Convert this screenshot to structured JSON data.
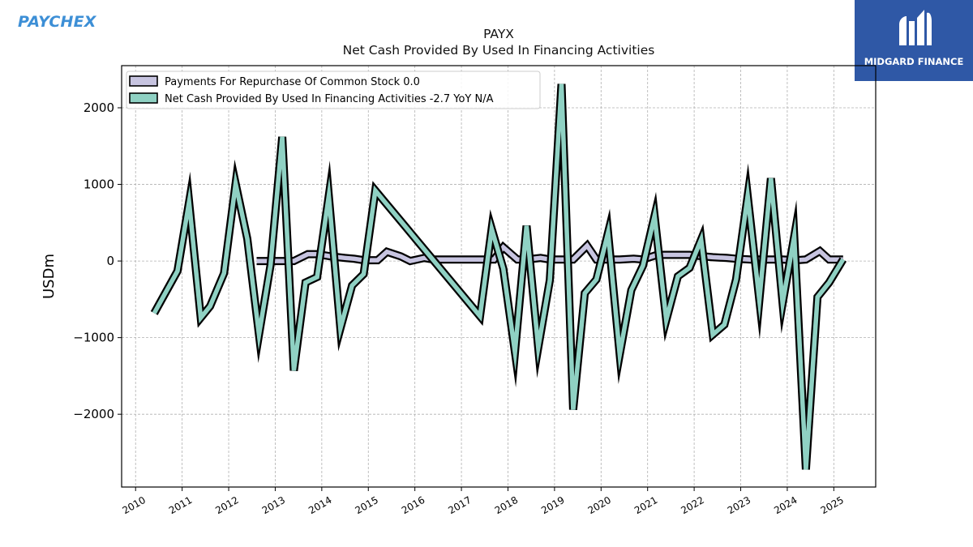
{
  "brand": {
    "left_logo": "PAYCHEX",
    "right_logo": "MIDGARD FINANCE"
  },
  "colors": {
    "repurchase": "#c7c4e0",
    "financing": "#8fd1c3",
    "outline": "#000000",
    "logo_blue": "#3d8fd6",
    "badge_bg": "#2f58a6"
  },
  "chart_data": {
    "type": "line",
    "title": "PAYX",
    "subtitle": "Net Cash Provided By Used In Financing Activities",
    "ylabel": "USDm",
    "xlabel": "",
    "xlim": [
      2009.7,
      2025.9
    ],
    "ylim": [
      -2950,
      2550
    ],
    "yticks": [
      -2000,
      -1000,
      0,
      1000,
      2000
    ],
    "ytick_labels": [
      "−2000",
      "−1000",
      "0",
      "1000",
      "2000"
    ],
    "xticks": [
      2010,
      2011,
      2012,
      2013,
      2014,
      2015,
      2016,
      2017,
      2018,
      2019,
      2020,
      2021,
      2022,
      2023,
      2024,
      2025
    ],
    "xtick_labels": [
      "2010",
      "2011",
      "2012",
      "2013",
      "2014",
      "2015",
      "2016",
      "2017",
      "2018",
      "2019",
      "2020",
      "2021",
      "2022",
      "2023",
      "2024",
      "2025"
    ],
    "grid": true,
    "legend_position": "top-left",
    "series": [
      {
        "name": "Payments For Repurchase Of Common Stock",
        "legend_label": "Payments For Repurchase Of Common Stock  0.0",
        "x": [
          2012.6,
          2012.9,
          2013.1,
          2013.4,
          2013.7,
          2013.9,
          2014.2,
          2014.5,
          2014.7,
          2014.9,
          2015.2,
          2015.4,
          2015.7,
          2015.9,
          2016.2,
          2016.4,
          2016.7,
          2017.2,
          2017.4,
          2017.7,
          2017.9,
          2018.2,
          2018.4,
          2018.7,
          2018.9,
          2019.2,
          2019.4,
          2019.7,
          2019.9,
          2020.2,
          2020.4,
          2020.7,
          2020.9,
          2021.2,
          2021.4,
          2021.7,
          2021.9,
          2022.2,
          2022.4,
          2022.7,
          2022.9,
          2023.2,
          2023.4,
          2023.7,
          2023.9,
          2024.2,
          2024.4,
          2024.7,
          2024.9,
          2025.2
        ],
        "values": [
          0,
          0,
          0,
          0,
          90,
          90,
          60,
          40,
          30,
          10,
          10,
          120,
          60,
          0,
          40,
          20,
          20,
          20,
          20,
          20,
          180,
          20,
          20,
          40,
          20,
          20,
          20,
          200,
          20,
          20,
          20,
          30,
          20,
          80,
          80,
          80,
          80,
          60,
          50,
          40,
          30,
          20,
          20,
          20,
          20,
          10,
          20,
          130,
          20,
          20
        ]
      },
      {
        "name": "Net Cash Provided By Used In Financing Activities",
        "legend_label": "Net Cash Provided By Used In Financing Activities  -2.7 YoY N/A",
        "x": [
          2010.4,
          2010.9,
          2011.15,
          2011.4,
          2011.6,
          2011.9,
          2012.15,
          2012.4,
          2012.65,
          2012.9,
          2013.15,
          2013.4,
          2013.65,
          2013.9,
          2014.15,
          2014.4,
          2014.65,
          2014.9,
          2015.15,
          2017.4,
          2017.65,
          2017.9,
          2018.15,
          2018.4,
          2018.65,
          2018.9,
          2019.15,
          2019.4,
          2019.65,
          2019.9,
          2020.15,
          2020.4,
          2020.65,
          2020.9,
          2021.15,
          2021.4,
          2021.65,
          2021.9,
          2022.15,
          2022.4,
          2022.65,
          2022.9,
          2023.15,
          2023.4,
          2023.65,
          2023.9,
          2024.15,
          2024.4,
          2024.65,
          2024.9,
          2025.2
        ],
        "values": [
          -680,
          -130,
          770,
          -740,
          -590,
          -160,
          1010,
          290,
          -960,
          -50,
          1620,
          -1430,
          -280,
          -210,
          850,
          -880,
          -320,
          -170,
          920,
          -720,
          420,
          -100,
          -1190,
          460,
          -1130,
          -250,
          2310,
          -1940,
          -420,
          -240,
          370,
          -1220,
          -380,
          -60,
          590,
          -770,
          -200,
          -90,
          280,
          -960,
          -830,
          -240,
          850,
          -510,
          1080,
          -550,
          320,
          -2720,
          -470,
          -280,
          20
        ]
      }
    ]
  }
}
